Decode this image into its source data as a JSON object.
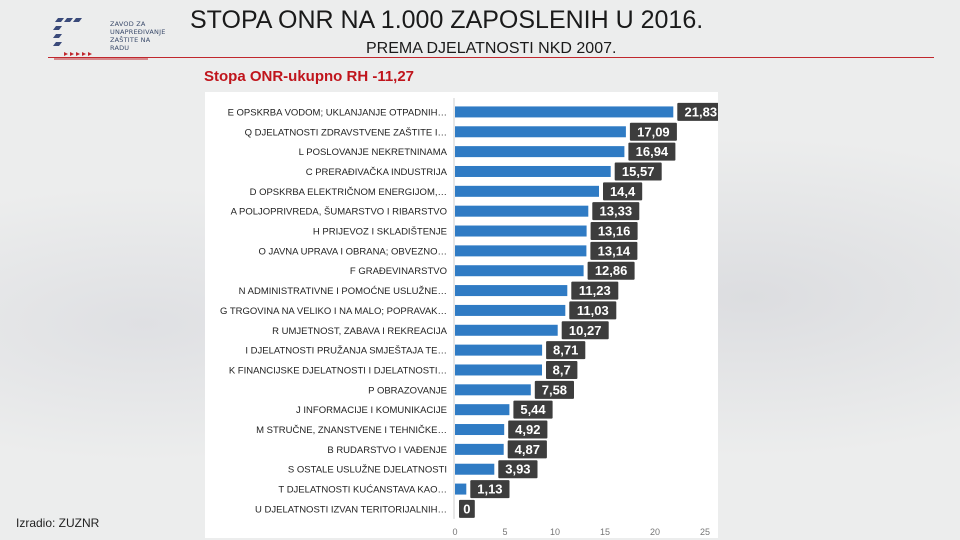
{
  "header": {
    "title": "STOPA ONR NA 1.000 ZAPOSLENIH U 2016.",
    "subtitle": "PREMA DJELATNOSTI NKD 2007."
  },
  "logo": {
    "lines": [
      "ZAVOD ZA",
      "UNAPREĐIVANJE",
      "ZAŠTITE NA RADU"
    ]
  },
  "footer": {
    "credit": "Izradio: ZUZNR"
  },
  "colors": {
    "bar": "#2f7bc4",
    "label_bg": "#3d3d3d",
    "label_text": "#ffffff",
    "accent_red": "#c0272d",
    "caption_red": "#c0151c"
  },
  "chart_data": {
    "type": "bar",
    "orientation": "horizontal",
    "title": "Stopa ONR-ukupno RH -11,27",
    "categories": [
      "E OPSKRBA VODOM; UKLANJANJE OTPADNIH…",
      "Q DJELATNOSTI ZDRAVSTVENE ZAŠTITE I…",
      "L POSLOVANJE NEKRETNINAMA",
      "C PRERAĐIVAČKA INDUSTRIJA",
      "D OPSKRBA ELEKTRIČNOM ENERGIJOM,…",
      "A POLJOPRIVREDA, ŠUMARSTVO I RIBARSTVO",
      "H PRIJEVOZ I SKLADIŠTENJE",
      "O JAVNA UPRAVA I OBRANA; OBVEZNO…",
      "F GRAĐEVINARSTVO",
      "N ADMINISTRATIVNE I POMOĆNE USLUŽNE…",
      "G TRGOVINA NA VELIKO I NA MALO; POPRAVAK…",
      "R UMJETNOST, ZABAVA I REKREACIJA",
      "I  DJELATNOSTI PRUŽANJA SMJEŠTAJA TE…",
      "K FINANCIJSKE DJELATNOSTI I DJELATNOSTI…",
      "P OBRAZOVANJE",
      "J INFORMACIJE I KOMUNIKACIJE",
      "M STRUČNE, ZNANSTVENE I TEHNIČKE…",
      "B RUDARSTVO I VAĐENJE",
      "S OSTALE USLUŽNE DJELATNOSTI",
      "T DJELATNOSTI KUĆANSTAVA KAO…",
      "U DJELATNOSTI IZVAN TERITORIJALNIH…"
    ],
    "values": [
      21.83,
      17.09,
      16.94,
      15.57,
      14.4,
      13.33,
      13.16,
      13.14,
      12.86,
      11.23,
      11.03,
      10.27,
      8.71,
      8.7,
      7.58,
      5.44,
      4.92,
      4.87,
      3.93,
      1.13,
      0
    ],
    "value_labels": [
      "21,83",
      "17,09",
      "16,94",
      "15,57",
      "14,4",
      "13,33",
      "13,16",
      "13,14",
      "12,86",
      "11,23",
      "11,03",
      "10,27",
      "8,71",
      "8,7",
      "7,58",
      "5,44",
      "4,92",
      "4,87",
      "3,93",
      "1,13",
      "0"
    ],
    "xlim": [
      0,
      25
    ],
    "xticks": [
      "0",
      "5",
      "10",
      "15",
      "20",
      "25"
    ],
    "grid": false,
    "legend": "none"
  }
}
